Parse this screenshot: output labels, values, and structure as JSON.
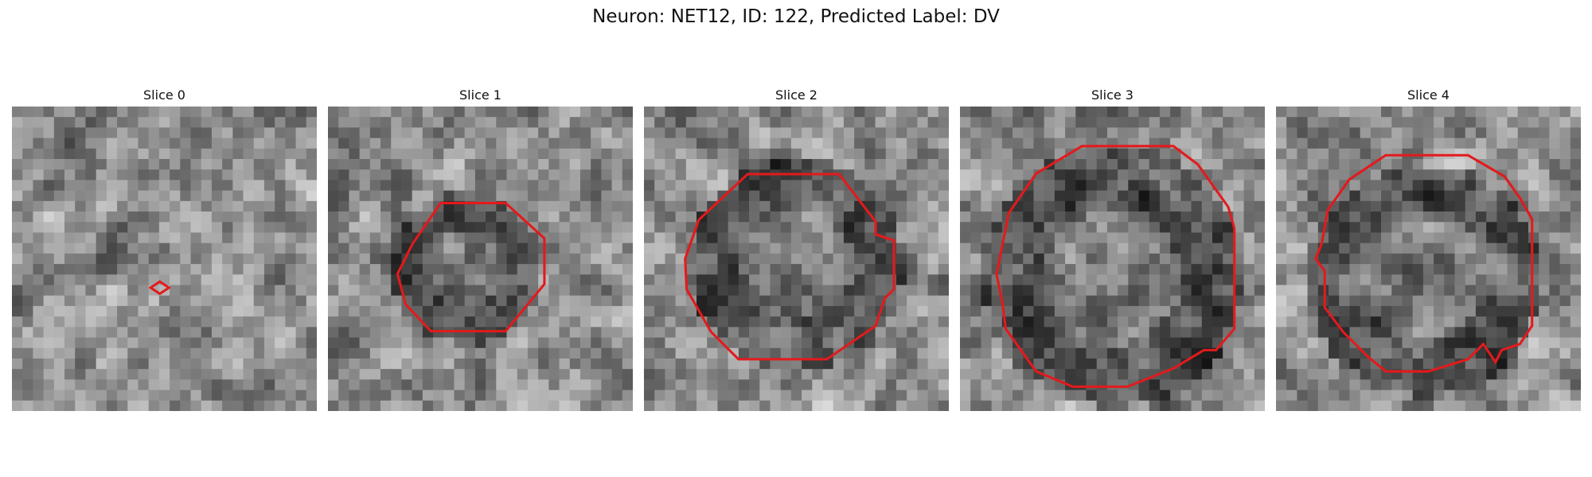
{
  "title": "Neuron: NET12, ID: 122, Predicted Label: DV",
  "contour_color": "#e31a1c",
  "slices": [
    {
      "label": "Slice 0",
      "contour": [
        [
          0.485,
          0.575
        ],
        [
          0.515,
          0.595
        ],
        [
          0.485,
          0.615
        ],
        [
          0.455,
          0.595
        ]
      ]
    },
    {
      "label": "Slice 1",
      "contour": [
        [
          0.37,
          0.317
        ],
        [
          0.583,
          0.317
        ],
        [
          0.71,
          0.433
        ],
        [
          0.71,
          0.583
        ],
        [
          0.583,
          0.738
        ],
        [
          0.338,
          0.738
        ],
        [
          0.255,
          0.65
        ],
        [
          0.228,
          0.55
        ],
        [
          0.278,
          0.45
        ]
      ]
    },
    {
      "label": "Slice 2",
      "contour": [
        [
          0.34,
          0.222
        ],
        [
          0.64,
          0.222
        ],
        [
          0.76,
          0.378
        ],
        [
          0.76,
          0.42
        ],
        [
          0.82,
          0.44
        ],
        [
          0.82,
          0.6
        ],
        [
          0.79,
          0.63
        ],
        [
          0.76,
          0.72
        ],
        [
          0.6,
          0.83
        ],
        [
          0.31,
          0.83
        ],
        [
          0.22,
          0.74
        ],
        [
          0.14,
          0.6
        ],
        [
          0.135,
          0.5
        ],
        [
          0.18,
          0.372
        ],
        [
          0.225,
          0.33
        ]
      ]
    },
    {
      "label": "Slice 3",
      "contour": [
        [
          0.4,
          0.13
        ],
        [
          0.7,
          0.13
        ],
        [
          0.78,
          0.19
        ],
        [
          0.88,
          0.33
        ],
        [
          0.9,
          0.4
        ],
        [
          0.9,
          0.73
        ],
        [
          0.84,
          0.8
        ],
        [
          0.8,
          0.8
        ],
        [
          0.7,
          0.86
        ],
        [
          0.55,
          0.92
        ],
        [
          0.37,
          0.92
        ],
        [
          0.25,
          0.87
        ],
        [
          0.15,
          0.73
        ],
        [
          0.14,
          0.65
        ],
        [
          0.12,
          0.55
        ],
        [
          0.14,
          0.45
        ],
        [
          0.16,
          0.35
        ],
        [
          0.25,
          0.22
        ]
      ]
    },
    {
      "label": "Slice 4",
      "contour": [
        [
          0.36,
          0.16
        ],
        [
          0.63,
          0.16
        ],
        [
          0.75,
          0.23
        ],
        [
          0.8,
          0.3
        ],
        [
          0.84,
          0.37
        ],
        [
          0.84,
          0.72
        ],
        [
          0.8,
          0.78
        ],
        [
          0.74,
          0.8
        ],
        [
          0.72,
          0.84
        ],
        [
          0.68,
          0.78
        ],
        [
          0.63,
          0.83
        ],
        [
          0.5,
          0.87
        ],
        [
          0.36,
          0.87
        ],
        [
          0.3,
          0.82
        ],
        [
          0.22,
          0.74
        ],
        [
          0.16,
          0.66
        ],
        [
          0.16,
          0.54
        ],
        [
          0.13,
          0.5
        ],
        [
          0.15,
          0.45
        ],
        [
          0.17,
          0.34
        ],
        [
          0.24,
          0.24
        ]
      ]
    }
  ]
}
